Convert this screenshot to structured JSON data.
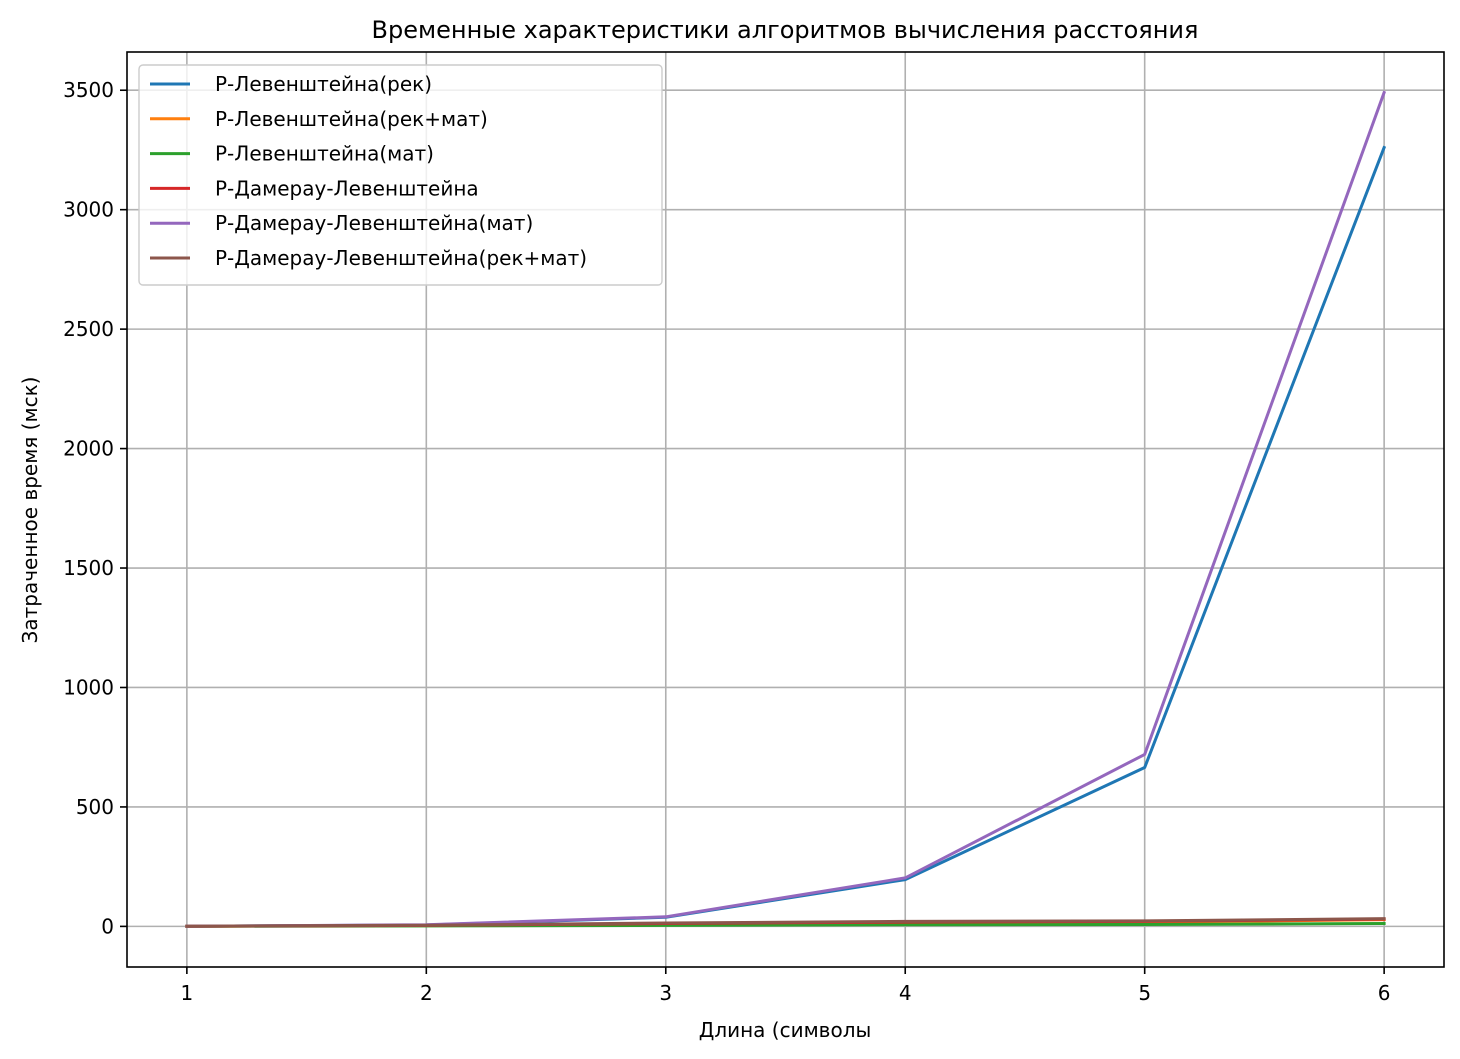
{
  "chart_data": {
    "type": "line",
    "title": "Временные характеристики алгоритмов вычисления расстояния",
    "xlabel": "Длина (символы",
    "ylabel": "Затраченное время (мск)",
    "x": [
      1,
      2,
      3,
      4,
      5,
      6
    ],
    "xlim": [
      0.75,
      6.25
    ],
    "ylim": [
      -170,
      3660
    ],
    "xticks": [
      1,
      2,
      3,
      4,
      5,
      6
    ],
    "yticks": [
      0,
      500,
      1000,
      1500,
      2000,
      2500,
      3000,
      3500
    ],
    "grid": true,
    "legend_position": "top-left",
    "series": [
      {
        "name": "Р-Левенштейна(рек)",
        "color": "#1f77b4",
        "values": [
          0.5,
          6,
          38,
          196,
          665,
          3260
        ]
      },
      {
        "name": "Р-Левенштейна(рек+мат)",
        "color": "#ff7f0e",
        "values": [
          0.5,
          3,
          9,
          15,
          18,
          28
        ]
      },
      {
        "name": "Р-Левенштейна(мат)",
        "color": "#2ca02c",
        "values": [
          0.3,
          2,
          4,
          7,
          8,
          12
        ]
      },
      {
        "name": "Р-Дамерау-Левенштейна",
        "color": "#d62728",
        "values": [
          0.5,
          4,
          12,
          18,
          21,
          30
        ]
      },
      {
        "name": "Р-Дамерау-Левенштейна(мат)",
        "color": "#9467bd",
        "values": [
          0.5,
          7,
          40,
          203,
          720,
          3490
        ]
      },
      {
        "name": "Р-Дамерау-Левенштейна(рек+мат)",
        "color": "#8c564b",
        "values": [
          0.6,
          5,
          14,
          21,
          23,
          32
        ]
      }
    ]
  }
}
